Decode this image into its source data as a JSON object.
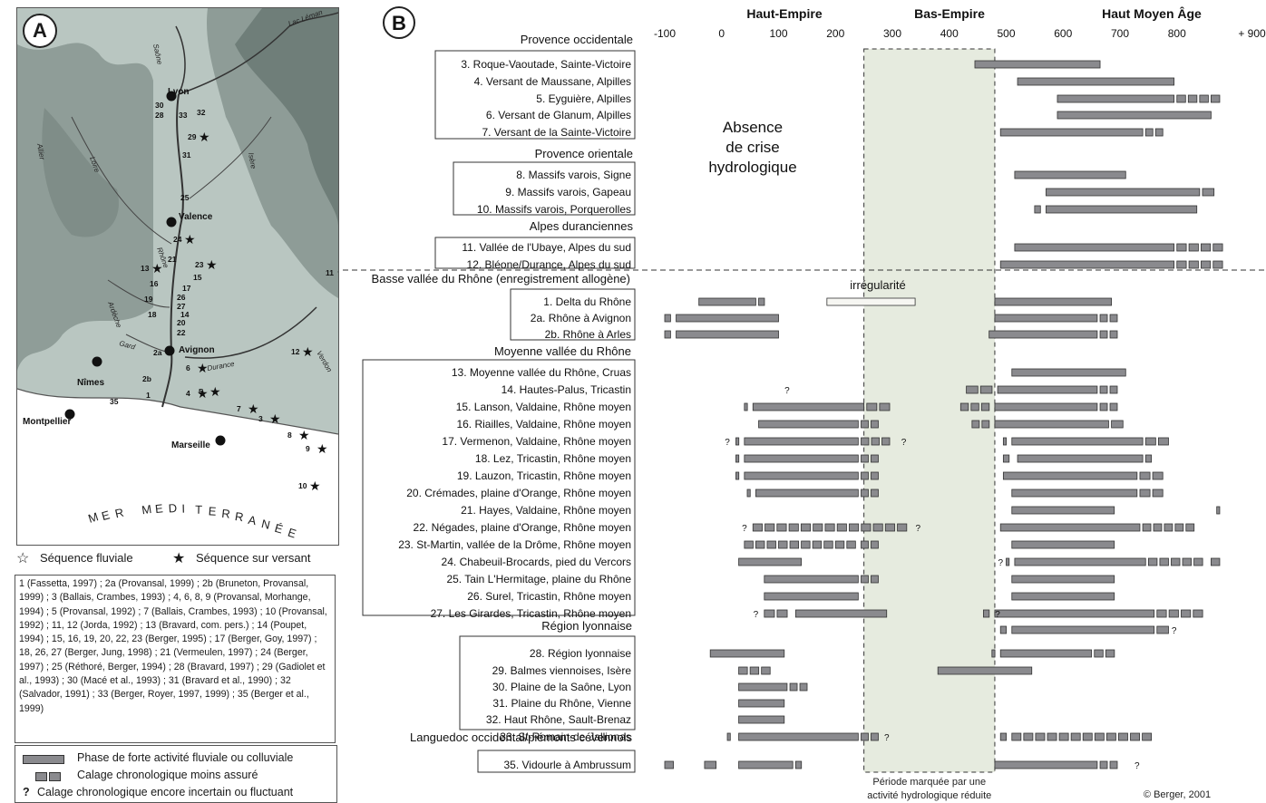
{
  "panel_a": {
    "label": "A",
    "sea_label": "MER MEDITERRANÉE",
    "cities": [
      {
        "name": "Lyon"
      },
      {
        "name": "Valence"
      },
      {
        "name": "Avignon"
      },
      {
        "name": "Nîmes"
      },
      {
        "name": "Montpellier"
      },
      {
        "name": "Marseille"
      }
    ],
    "rivers": [
      "Saône",
      "Lac Léman",
      "Allier",
      "Loire",
      "Isère",
      "Ardèche",
      "Rhône",
      "Gard",
      "Durance",
      "Verdon"
    ],
    "site_numbers": [
      "30",
      "28",
      "33",
      "32",
      "29",
      "31",
      "25",
      "24",
      "23",
      "21",
      "13",
      "15",
      "16",
      "19",
      "18",
      "20",
      "22",
      "17",
      "26",
      "27",
      "14",
      "2a",
      "2b",
      "6",
      "4",
      "5",
      "1",
      "35",
      "7",
      "3",
      "8",
      "9",
      "10",
      "11",
      "12"
    ],
    "legend": {
      "fluvial": "Séquence fluviale",
      "versant": "Séquence sur versant"
    },
    "references": "1 (Fassetta, 1997) ; 2a (Provansal, 1999) ; 2b (Bruneton, Provansal, 1999) ; 3 (Ballais, Crambes, 1993) ; 4, 6, 8, 9 (Provansal, Morhange, 1994) ; 5 (Provansal, 1992) ; 7 (Ballais, Crambes, 1993) ; 10 (Provansal, 1992) ; 11, 12 (Jorda, 1992) ; 13 (Bravard, com. pers.) ; 14 (Poupet, 1994) ; 15, 16, 19, 20, 22, 23 (Berger, 1995) ; 17 (Berger, Goy, 1997) ; 18, 26, 27 (Berger, Jung, 1998) ; 21 (Vermeulen, 1997) ; 24 (Berger, 1997) ; 25 (Réthoré, Berger, 1994) ; 28 (Bravard, 1997) ; 29 (Gadiolet et al., 1993) ; 30 (Macé et al., 1993) ; 31 (Bravard et al., 1990) ; 32 (Salvador, 1991) ; 33 (Berger, Royer, 1997, 1999) ; 35 (Berger et al., 1999)",
    "legend_box": {
      "strong": "Phase de forte activité fluviale ou colluviale",
      "less_sure": "Calage chronologique moins assuré",
      "uncertain": "Calage chronologique encore incertain ou fluctuant",
      "q": "?"
    }
  },
  "panel_b": {
    "label": "B",
    "periods": [
      "Haut-Empire",
      "Bas-Empire",
      "Haut Moyen Âge"
    ],
    "axis_ticks": [
      "-100",
      "0",
      "100",
      "200",
      "300",
      "400",
      "500",
      "600",
      "700",
      "800",
      "+ 900"
    ],
    "x_range": [
      -100,
      900
    ],
    "reduced_period": [
      250,
      480
    ],
    "reduced_caption_1": "Période marquée par une",
    "reduced_caption_2": "activité hydrologique réduite",
    "absence_1": "Absence",
    "absence_2": "de crise",
    "absence_3": "hydrologique",
    "irregularite": "irrégularité",
    "credit": "© Berger, 2001",
    "groups": [
      {
        "title": "Provence occidentale",
        "sites": [
          "3. Roque-Vaoutade, Sainte-Victoire",
          "4. Versant de Maussane, Alpilles",
          "5. Eyguière, Alpilles",
          "6. Versant de Glanum, Alpilles",
          "7. Versant de la Sainte-Victoire"
        ]
      },
      {
        "title": "Provence orientale",
        "sites": [
          "8. Massifs varois, Signe",
          "9. Massifs varois, Gapeau",
          "10. Massifs varois, Porquerolles"
        ]
      },
      {
        "title": "Alpes duranciennes",
        "sites": [
          "11. Vallée de l'Ubaye, Alpes du sud",
          "12. Bléone/Durance, Alpes du sud"
        ]
      },
      {
        "title": "Basse vallée du Rhône (enregistrement allogène)",
        "sites": [
          "1. Delta du Rhône",
          "2a. Rhône à Avignon",
          "2b. Rhône à Arles"
        ]
      },
      {
        "title": "Moyenne vallée du Rhône",
        "sites": [
          "13. Moyenne vallée du Rhône, Cruas",
          "14. Hautes-Palus, Tricastin",
          "15. Lanson, Valdaine, Rhône moyen",
          "16. Riailles, Valdaine, Rhône moyen",
          "17. Vermenon, Valdaine, Rhône moyen",
          "18. Lez, Tricastin, Rhône moyen",
          "19. Lauzon, Tricastin, Rhône moyen",
          "20. Crémades, plaine d'Orange, Rhône moyen",
          "21. Hayes, Valdaine, Rhône moyen",
          "22. Négades, plaine d'Orange, Rhône moyen",
          "23. St-Martin, vallée de la Drôme, Rhône moyen",
          "24. Chabeuil-Brocards, pied du Vercors",
          "25. Tain L'Hermitage, plaine du Rhône",
          "26. Surel, Tricastin, Rhône moyen",
          "27. Les Girardes, Tricastin, Rhône moyen"
        ]
      },
      {
        "title": "Région lyonnaise",
        "sites": [
          "28. Région lyonnaise",
          "29. Balmes viennoises, Isère",
          "30. Plaine de la Saône, Lyon",
          "31. Plaine du Rhône, Vienne",
          "32. Haut Rhône, Sault-Brenaz",
          "33. St-Romain-de-Jallionas"
        ]
      },
      {
        "title": "Languedoc occidental/piémonts cévennols",
        "sites": [
          "35. Vidourle à Ambrussum"
        ]
      }
    ]
  },
  "chart_data": {
    "type": "timeline",
    "x_unit": "years AD",
    "rows": [
      {
        "site": "3",
        "solid": [
          [
            445,
            665
          ]
        ],
        "dashed": []
      },
      {
        "site": "4",
        "solid": [
          [
            520,
            795
          ]
        ],
        "dashed": []
      },
      {
        "site": "5",
        "solid": [
          [
            590,
            795
          ]
        ],
        "dashed": [
          [
            800,
            880
          ]
        ]
      },
      {
        "site": "6",
        "solid": [
          [
            590,
            860
          ]
        ],
        "dashed": []
      },
      {
        "site": "7",
        "solid": [
          [
            490,
            740
          ]
        ],
        "dashed": [
          [
            745,
            780
          ]
        ]
      },
      {
        "site": "8",
        "solid": [
          [
            515,
            710
          ]
        ],
        "dashed": []
      },
      {
        "site": "9",
        "solid": [
          [
            570,
            840
          ]
        ],
        "dashed": [
          [
            845,
            870
          ]
        ]
      },
      {
        "site": "10",
        "solid": [
          [
            570,
            835
          ]
        ],
        "dashed": [
          [
            550,
            565
          ]
        ]
      },
      {
        "site": "11",
        "solid": [
          [
            515,
            795
          ]
        ],
        "dashed": [
          [
            800,
            885
          ]
        ]
      },
      {
        "site": "12",
        "solid": [
          [
            490,
            795
          ]
        ],
        "dashed": [
          [
            800,
            885
          ]
        ]
      },
      {
        "site": "1",
        "solid": [
          [
            -40,
            60
          ],
          [
            480,
            685
          ]
        ],
        "dashed": [
          [
            65,
            80
          ]
        ],
        "irregular": [
          [
            185,
            340
          ]
        ]
      },
      {
        "site": "2a",
        "solid": [
          [
            -80,
            100
          ],
          [
            480,
            660
          ]
        ],
        "dashed": [
          [
            -100,
            -85
          ],
          [
            665,
            700
          ]
        ]
      },
      {
        "site": "2b",
        "solid": [
          [
            -80,
            100
          ],
          [
            470,
            660
          ]
        ],
        "dashed": [
          [
            -100,
            -85
          ],
          [
            665,
            700
          ]
        ]
      },
      {
        "site": "13",
        "solid": [
          [
            510,
            710
          ]
        ],
        "dashed": []
      },
      {
        "site": "14",
        "solid": [
          [
            485,
            660
          ]
        ],
        "dashed": [
          [
            430,
            480
          ],
          [
            665,
            700
          ]
        ],
        "q": [
          115
        ]
      },
      {
        "site": "15",
        "solid": [
          [
            55,
            250
          ],
          [
            480,
            660
          ]
        ],
        "dashed": [
          [
            40,
            50
          ],
          [
            255,
            300
          ],
          [
            420,
            475
          ],
          [
            665,
            700
          ]
        ]
      },
      {
        "site": "16",
        "solid": [
          [
            65,
            240
          ],
          [
            480,
            680
          ]
        ],
        "dashed": [
          [
            245,
            280
          ],
          [
            440,
            475
          ],
          [
            685,
            710
          ]
        ]
      },
      {
        "site": "17",
        "solid": [
          [
            40,
            240
          ],
          [
            510,
            740
          ]
        ],
        "dashed": [
          [
            25,
            35
          ],
          [
            245,
            300
          ],
          [
            495,
            505
          ],
          [
            745,
            790
          ]
        ],
        "q": [
          10,
          320
        ]
      },
      {
        "site": "18",
        "solid": [
          [
            40,
            240
          ],
          [
            520,
            740
          ]
        ],
        "dashed": [
          [
            25,
            35
          ],
          [
            245,
            280
          ],
          [
            495,
            510
          ],
          [
            745,
            760
          ]
        ]
      },
      {
        "site": "19",
        "solid": [
          [
            40,
            240
          ],
          [
            495,
            730
          ]
        ],
        "dashed": [
          [
            25,
            35
          ],
          [
            245,
            280
          ],
          [
            735,
            780
          ]
        ]
      },
      {
        "site": "20",
        "solid": [
          [
            60,
            240
          ],
          [
            510,
            730
          ]
        ],
        "dashed": [
          [
            45,
            55
          ],
          [
            245,
            280
          ],
          [
            735,
            780
          ]
        ]
      },
      {
        "site": "21",
        "solid": [
          [
            510,
            690
          ]
        ],
        "dashed": [
          [
            870,
            880
          ]
        ]
      },
      {
        "site": "22",
        "solid": [
          [
            490,
            735
          ]
        ],
        "dashed": [
          [
            55,
            330
          ],
          [
            740,
            835
          ]
        ],
        "q": [
          40,
          345
        ]
      },
      {
        "site": "23",
        "solid": [
          [
            510,
            690
          ]
        ],
        "dashed": [
          [
            40,
            240
          ],
          [
            245,
            280
          ]
        ]
      },
      {
        "site": "24",
        "solid": [
          [
            30,
            140
          ],
          [
            515,
            745
          ]
        ],
        "dashed": [
          [
            500,
            510
          ],
          [
            750,
            850
          ],
          [
            860,
            880
          ]
        ],
        "q": [
          490
        ]
      },
      {
        "site": "25",
        "solid": [
          [
            75,
            240
          ],
          [
            510,
            690
          ]
        ],
        "dashed": [
          [
            245,
            280
          ]
        ]
      },
      {
        "site": "26",
        "solid": [
          [
            75,
            240
          ],
          [
            510,
            690
          ]
        ],
        "dashed": []
      },
      {
        "site": "27",
        "solid": [
          [
            130,
            290
          ],
          [
            480,
            760
          ]
        ],
        "dashed": [
          [
            75,
            120
          ],
          [
            460,
            475
          ],
          [
            765,
            850
          ]
        ],
        "q": [
          60,
          485
        ]
      },
      {
        "site": "33b",
        "solid": [
          [
            510,
            760
          ]
        ],
        "dashed": [
          [
            490,
            505
          ],
          [
            765,
            790
          ]
        ],
        "q": [
          795
        ]
      },
      {
        "site": "28",
        "solid": [
          [
            -20,
            110
          ],
          [
            490,
            650
          ]
        ],
        "dashed": [
          [
            475,
            485
          ],
          [
            655,
            695
          ]
        ]
      },
      {
        "site": "29",
        "solid": [
          [
            380,
            545
          ]
        ],
        "dashed": [
          [
            30,
            90
          ]
        ]
      },
      {
        "site": "30",
        "solid": [
          [
            30,
            115
          ]
        ],
        "dashed": [
          [
            120,
            155
          ]
        ]
      },
      {
        "site": "31",
        "solid": [
          [
            30,
            110
          ]
        ],
        "dashed": []
      },
      {
        "site": "32",
        "solid": [
          [
            30,
            110
          ]
        ],
        "dashed": []
      },
      {
        "site": "33",
        "solid": [
          [
            30,
            240
          ]
        ],
        "dashed": [
          [
            10,
            20
          ],
          [
            245,
            280
          ],
          [
            490,
            505
          ],
          [
            510,
            760
          ]
        ],
        "q": [
          290
        ]
      },
      {
        "site": "35",
        "solid": [
          [
            30,
            125
          ],
          [
            480,
            660
          ]
        ],
        "dashed": [
          [
            -100,
            -80
          ],
          [
            -30,
            -5
          ],
          [
            130,
            145
          ],
          [
            665,
            700
          ]
        ],
        "q": [
          730
        ]
      }
    ]
  }
}
